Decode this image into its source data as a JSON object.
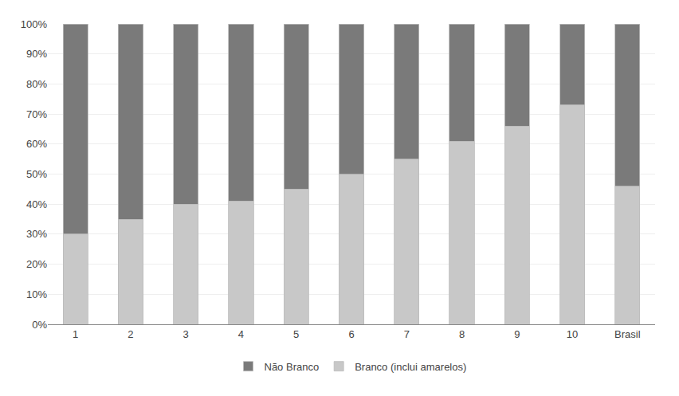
{
  "chart_data": {
    "type": "bar",
    "stacked": true,
    "categories": [
      "1",
      "2",
      "3",
      "4",
      "5",
      "6",
      "7",
      "8",
      "9",
      "10",
      "Brasil"
    ],
    "series": [
      {
        "name": "Branco (inclui amarelos)",
        "color": "#c8c8c8",
        "values": [
          30,
          35,
          40,
          41,
          45,
          50,
          55,
          61,
          66,
          73,
          46
        ]
      },
      {
        "name": "Não Branco",
        "color": "#7a7a7a",
        "values": [
          70,
          65,
          60,
          59,
          55,
          50,
          45,
          39,
          34,
          27,
          54
        ]
      }
    ],
    "ylim": [
      0,
      100
    ],
    "yticks": [
      {
        "value": 0,
        "label": "0%"
      },
      {
        "value": 10,
        "label": "10%"
      },
      {
        "value": 20,
        "label": "20%"
      },
      {
        "value": 30,
        "label": "30%"
      },
      {
        "value": 40,
        "label": "40%"
      },
      {
        "value": 50,
        "label": "50%"
      },
      {
        "value": 60,
        "label": "60%"
      },
      {
        "value": 70,
        "label": "70%"
      },
      {
        "value": 80,
        "label": "80%"
      },
      {
        "value": 90,
        "label": "90%"
      },
      {
        "value": 100,
        "label": "100%"
      }
    ],
    "grid": true,
    "legend": "bottom"
  }
}
